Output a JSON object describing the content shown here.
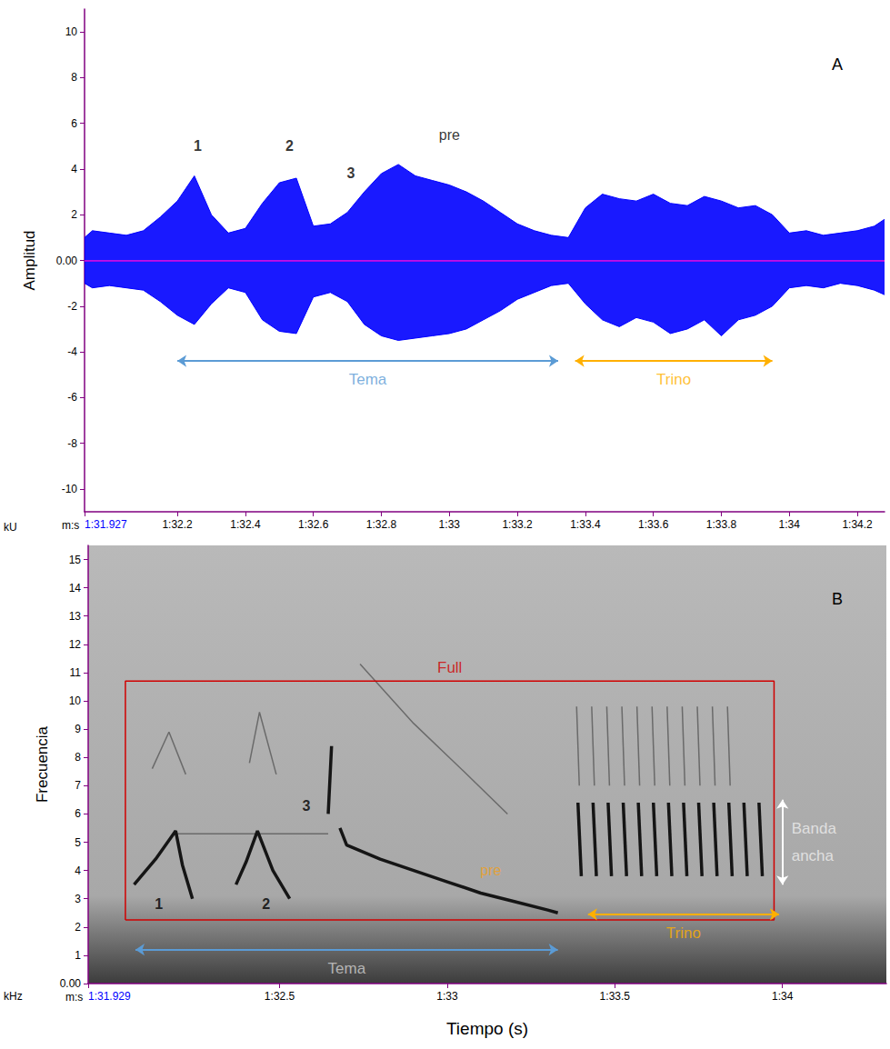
{
  "chart_data": [
    {
      "type": "area",
      "panel": "A",
      "ylabel": "Amplitud",
      "y_unit": "kU",
      "x_unit": "m:s",
      "x": [
        91.927,
        91.95,
        92.0,
        92.05,
        92.1,
        92.15,
        92.2,
        92.25,
        92.3,
        92.35,
        92.4,
        92.45,
        92.5,
        92.55,
        92.6,
        92.65,
        92.7,
        92.75,
        92.8,
        92.85,
        92.9,
        92.95,
        93.0,
        93.05,
        93.1,
        93.15,
        93.2,
        93.25,
        93.3,
        93.35,
        93.4,
        93.45,
        93.5,
        93.55,
        93.6,
        93.65,
        93.7,
        93.75,
        93.8,
        93.85,
        93.9,
        93.95,
        94.0,
        94.05,
        94.1,
        94.15,
        94.2,
        94.25,
        94.28
      ],
      "series": [
        {
          "color": "#0000ff",
          "values": [
            1.0,
            1.3,
            1.2,
            1.1,
            1.3,
            1.9,
            2.6,
            3.7,
            2.0,
            1.2,
            1.4,
            2.5,
            3.4,
            3.6,
            1.5,
            1.6,
            2.1,
            3.0,
            3.8,
            4.2,
            3.7,
            3.5,
            3.3,
            3.0,
            2.6,
            2.1,
            1.6,
            1.3,
            1.1,
            1.0,
            2.3,
            2.9,
            2.7,
            2.6,
            2.9,
            2.5,
            2.4,
            2.8,
            2.6,
            2.3,
            2.4,
            2.0,
            1.2,
            1.3,
            1.1,
            1.2,
            1.3,
            1.5,
            1.8
          ]
        },
        {
          "color": "#0000ff",
          "values": [
            -1.0,
            -1.2,
            -1.1,
            -1.2,
            -1.3,
            -1.8,
            -2.4,
            -2.8,
            -1.9,
            -1.2,
            -1.4,
            -2.6,
            -3.1,
            -3.2,
            -1.6,
            -1.4,
            -1.8,
            -2.8,
            -3.3,
            -3.5,
            -3.4,
            -3.3,
            -3.2,
            -3.0,
            -2.6,
            -2.2,
            -1.7,
            -1.4,
            -1.1,
            -1.0,
            -1.9,
            -2.6,
            -2.9,
            -2.5,
            -2.7,
            -3.2,
            -3.0,
            -2.6,
            -3.3,
            -2.6,
            -2.4,
            -2.0,
            -1.2,
            -1.1,
            -1.2,
            -1.0,
            -1.1,
            -1.3,
            -1.5
          ]
        }
      ],
      "baseline": 0,
      "xlim": [
        91.927,
        94.28
      ],
      "xticks": [
        {
          "value": 91.927,
          "label": "1:31.927"
        },
        {
          "value": 92.2,
          "label": "1:32.2"
        },
        {
          "value": 92.4,
          "label": "1:32.4"
        },
        {
          "value": 92.6,
          "label": "1:32.6"
        },
        {
          "value": 92.8,
          "label": "1:32.8"
        },
        {
          "value": 93,
          "label": "1:33"
        },
        {
          "value": 93.2,
          "label": "1:33.2"
        },
        {
          "value": 93.4,
          "label": "1:33.4"
        },
        {
          "value": 93.6,
          "label": "1:33.6"
        },
        {
          "value": 93.8,
          "label": "1:33.8"
        },
        {
          "value": 94,
          "label": "1:34"
        },
        {
          "value": 94.2,
          "label": "1:34.2"
        }
      ],
      "ylim": [
        -11,
        11
      ],
      "yticks": [
        -10,
        -8,
        -6,
        -4,
        -2,
        {
          "value": 0,
          "label": "0.00"
        },
        2,
        4,
        6,
        8,
        10
      ],
      "annotations": [
        {
          "text": "1",
          "x": 92.26,
          "y": 5.0,
          "color": "#000000"
        },
        {
          "text": "2",
          "x": 92.53,
          "y": 5.0,
          "color": "#000000"
        },
        {
          "text": "3",
          "x": 92.71,
          "y": 3.8,
          "color": "#000000"
        },
        {
          "text": "pre",
          "x": 93.0,
          "y": 5.5,
          "color": "#000000"
        }
      ],
      "spans": [
        {
          "text": "Tema",
          "start": 92.2,
          "end": 93.32,
          "y": -4.4,
          "color": "#5b9bd5",
          "text_color": "#5b9bd5"
        },
        {
          "text": "Trino",
          "start": 93.37,
          "end": 93.95,
          "y": -4.4,
          "color": "#ffb000",
          "text_color": "#ffb000"
        }
      ],
      "grid": false
    },
    {
      "type": "spectrogram",
      "panel": "B",
      "ylabel": "Frecuencia",
      "y_unit": "kHz",
      "x_unit": "m:s",
      "xlabel": "Tiempo (s)",
      "xlim": [
        91.929,
        94.31
      ],
      "xticks": [
        {
          "value": 91.929,
          "label": "1:31.929"
        },
        {
          "value": 92.5,
          "label": "1:32.5"
        },
        {
          "value": 93,
          "label": "1:33"
        },
        {
          "value": 93.5,
          "label": "1:33.5"
        },
        {
          "value": 94,
          "label": "1:34"
        }
      ],
      "ylim": [
        0,
        15.5
      ],
      "yticks": [
        {
          "value": 0,
          "label": "0.00"
        },
        1,
        2,
        3,
        4,
        5,
        6,
        7,
        8,
        9,
        10,
        11,
        12,
        13,
        14,
        15
      ],
      "traces": [
        {
          "line_style": "solid",
          "points": [
            [
              92.066,
              3.5
            ],
            [
              92.13,
              4.4
            ],
            [
              92.19,
              5.4
            ],
            [
              92.21,
              4.2
            ],
            [
              92.24,
              3.0
            ]
          ]
        },
        {
          "line_style": "solid",
          "points": [
            [
              92.37,
              3.5
            ],
            [
              92.4,
              4.3
            ],
            [
              92.434,
              5.4
            ],
            [
              92.48,
              4.0
            ],
            [
              92.53,
              3.0
            ]
          ]
        },
        {
          "line_style": "solid",
          "points": [
            [
              92.645,
              6.0
            ],
            [
              92.65,
              7.2
            ],
            [
              92.655,
              8.4
            ]
          ]
        },
        {
          "line_style": "solid",
          "points": [
            [
              92.68,
              5.5
            ],
            [
              92.7,
              4.9
            ],
            [
              92.8,
              4.4
            ],
            [
              92.9,
              4.0
            ],
            [
              93.0,
              3.6
            ],
            [
              93.1,
              3.2
            ],
            [
              93.2,
              2.9
            ],
            [
              93.3,
              2.6
            ],
            [
              93.33,
              2.5
            ]
          ]
        },
        {
          "line_style": "solid",
          "points": [
            [
              93.39,
              6.4
            ],
            [
              93.4,
              3.8
            ]
          ]
        },
        {
          "line_style": "solid",
          "points": [
            [
              93.435,
              6.4
            ],
            [
              93.445,
              3.8
            ]
          ]
        },
        {
          "line_style": "solid",
          "points": [
            [
              93.48,
              6.4
            ],
            [
              93.49,
              3.8
            ]
          ]
        },
        {
          "line_style": "solid",
          "points": [
            [
              93.525,
              6.4
            ],
            [
              93.535,
              3.8
            ]
          ]
        },
        {
          "line_style": "solid",
          "points": [
            [
              93.57,
              6.4
            ],
            [
              93.58,
              3.8
            ]
          ]
        },
        {
          "line_style": "solid",
          "points": [
            [
              93.615,
              6.4
            ],
            [
              93.625,
              3.8
            ]
          ]
        },
        {
          "line_style": "solid",
          "points": [
            [
              93.66,
              6.4
            ],
            [
              93.67,
              3.8
            ]
          ]
        },
        {
          "line_style": "solid",
          "points": [
            [
              93.705,
              6.4
            ],
            [
              93.715,
              3.8
            ]
          ]
        },
        {
          "line_style": "solid",
          "points": [
            [
              93.75,
              6.4
            ],
            [
              93.76,
              3.8
            ]
          ]
        },
        {
          "line_style": "solid",
          "points": [
            [
              93.795,
              6.4
            ],
            [
              93.805,
              3.8
            ]
          ]
        },
        {
          "line_style": "solid",
          "points": [
            [
              93.84,
              6.4
            ],
            [
              93.85,
              3.8
            ]
          ]
        },
        {
          "line_style": "solid",
          "points": [
            [
              93.885,
              6.4
            ],
            [
              93.895,
              3.8
            ]
          ]
        },
        {
          "line_style": "solid",
          "points": [
            [
              93.93,
              6.4
            ],
            [
              93.94,
              3.8
            ]
          ]
        },
        {
          "line_style": "faint",
          "points": [
            [
              92.12,
              7.6
            ],
            [
              92.17,
              8.9
            ],
            [
              92.22,
              7.4
            ]
          ]
        },
        {
          "line_style": "faint",
          "points": [
            [
              92.41,
              7.8
            ],
            [
              92.44,
              9.6
            ],
            [
              92.49,
              7.4
            ]
          ]
        },
        {
          "line_style": "faint",
          "points": [
            [
              92.19,
              5.3
            ],
            [
              92.645,
              5.3
            ]
          ]
        },
        {
          "line_style": "faint",
          "points": [
            [
              92.74,
              11.3
            ],
            [
              92.9,
              9.2
            ],
            [
              93.05,
              7.5
            ],
            [
              93.18,
              6.0
            ]
          ]
        },
        {
          "line_style": "faint",
          "points": [
            [
              93.386,
              9.8
            ],
            [
              93.394,
              7.0
            ]
          ]
        },
        {
          "line_style": "faint",
          "points": [
            [
              93.431,
              9.8
            ],
            [
              93.439,
              7.0
            ]
          ]
        },
        {
          "line_style": "faint",
          "points": [
            [
              93.476,
              9.8
            ],
            [
              93.484,
              7.0
            ]
          ]
        },
        {
          "line_style": "faint",
          "points": [
            [
              93.521,
              9.8
            ],
            [
              93.529,
              7.0
            ]
          ]
        },
        {
          "line_style": "faint",
          "points": [
            [
              93.566,
              9.8
            ],
            [
              93.574,
              7.0
            ]
          ]
        },
        {
          "line_style": "faint",
          "points": [
            [
              93.611,
              9.8
            ],
            [
              93.619,
              7.0
            ]
          ]
        },
        {
          "line_style": "faint",
          "points": [
            [
              93.656,
              9.8
            ],
            [
              93.664,
              7.0
            ]
          ]
        },
        {
          "line_style": "faint",
          "points": [
            [
              93.701,
              9.8
            ],
            [
              93.709,
              7.0
            ]
          ]
        },
        {
          "line_style": "faint",
          "points": [
            [
              93.746,
              9.8
            ],
            [
              93.754,
              7.0
            ]
          ]
        },
        {
          "line_style": "faint",
          "points": [
            [
              93.791,
              9.8
            ],
            [
              93.799,
              7.0
            ]
          ]
        },
        {
          "line_style": "faint",
          "points": [
            [
              93.836,
              9.8
            ],
            [
              93.844,
              7.0
            ]
          ]
        }
      ],
      "box": {
        "text": "Full",
        "x": [
          92.04,
          93.975
        ],
        "y": [
          2.25,
          10.7
        ],
        "color": "#d00000"
      },
      "annotations": [
        {
          "text": "1",
          "x": 92.14,
          "y": 2.8,
          "color": "#000000"
        },
        {
          "text": "2",
          "x": 92.46,
          "y": 2.8,
          "color": "#000000"
        },
        {
          "text": "3",
          "x": 92.58,
          "y": 6.3,
          "color": "#000000"
        },
        {
          "text": "pre",
          "x": 93.13,
          "y": 4.0,
          "color": "#f0a020"
        }
      ],
      "spans": [
        {
          "text": "Tema",
          "start": 92.07,
          "end": 93.33,
          "y": 1.2,
          "color": "#5b9bd5",
          "text_color": "#d0d0d0"
        },
        {
          "text": "Trino",
          "start": 93.42,
          "end": 93.99,
          "y": 2.45,
          "color": "#ffb000",
          "text_color": "#ffb000"
        }
      ],
      "vspans": [
        {
          "text": "Banda ancha",
          "x": 94.0,
          "start": 3.5,
          "end": 6.5,
          "color": "#ffffff",
          "text_color": "#eeeeee"
        }
      ],
      "grid": false
    }
  ]
}
